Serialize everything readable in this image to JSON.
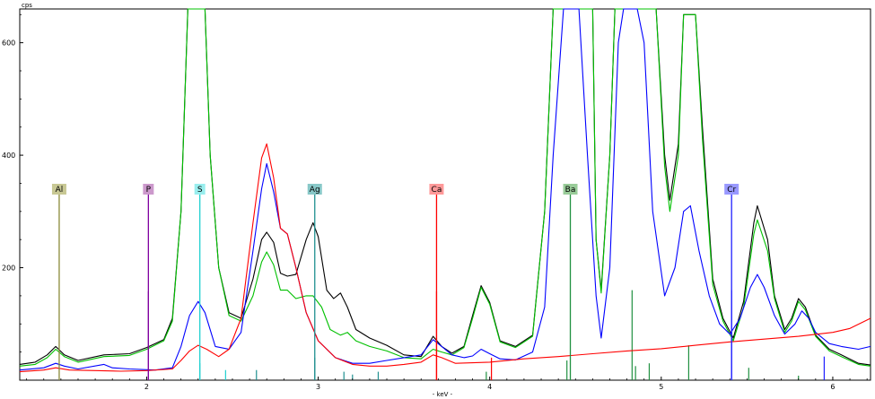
{
  "chart_data": {
    "type": "line",
    "title": "",
    "xlabel": "- keV -",
    "ylabel": "cps",
    "xlim": [
      1.26,
      6.22
    ],
    "ylim": [
      0,
      660
    ],
    "x_ticks": [
      2,
      3,
      4,
      5,
      6
    ],
    "y_ticks": [
      200,
      400,
      600
    ],
    "grid": false,
    "series": [
      {
        "color": "#000000",
        "points": [
          [
            1.26,
            28
          ],
          [
            1.35,
            32
          ],
          [
            1.42,
            45
          ],
          [
            1.47,
            60
          ],
          [
            1.52,
            45
          ],
          [
            1.6,
            35
          ],
          [
            1.75,
            45
          ],
          [
            1.9,
            47
          ],
          [
            2.0,
            58
          ],
          [
            2.1,
            72
          ],
          [
            2.15,
            110
          ],
          [
            2.2,
            300
          ],
          [
            2.24,
            800
          ],
          [
            2.34,
            800
          ],
          [
            2.37,
            400
          ],
          [
            2.42,
            200
          ],
          [
            2.48,
            120
          ],
          [
            2.55,
            110
          ],
          [
            2.62,
            180
          ],
          [
            2.67,
            250
          ],
          [
            2.7,
            263
          ],
          [
            2.74,
            245
          ],
          [
            2.78,
            190
          ],
          [
            2.82,
            185
          ],
          [
            2.87,
            188
          ],
          [
            2.93,
            250
          ],
          [
            2.97,
            280
          ],
          [
            3.0,
            255
          ],
          [
            3.05,
            160
          ],
          [
            3.09,
            145
          ],
          [
            3.13,
            155
          ],
          [
            3.17,
            130
          ],
          [
            3.22,
            90
          ],
          [
            3.3,
            75
          ],
          [
            3.4,
            62
          ],
          [
            3.5,
            45
          ],
          [
            3.6,
            42
          ],
          [
            3.67,
            78
          ],
          [
            3.72,
            60
          ],
          [
            3.78,
            48
          ],
          [
            3.85,
            60
          ],
          [
            3.9,
            115
          ],
          [
            3.95,
            168
          ],
          [
            4.0,
            138
          ],
          [
            4.06,
            70
          ],
          [
            4.15,
            60
          ],
          [
            4.25,
            80
          ],
          [
            4.32,
            300
          ],
          [
            4.37,
            800
          ],
          [
            4.6,
            800
          ],
          [
            4.62,
            250
          ],
          [
            4.65,
            160
          ],
          [
            4.7,
            400
          ],
          [
            4.73,
            800
          ],
          [
            4.97,
            800
          ],
          [
            5.02,
            400
          ],
          [
            5.05,
            320
          ],
          [
            5.1,
            420
          ],
          [
            5.13,
            650
          ],
          [
            5.2,
            650
          ],
          [
            5.24,
            450
          ],
          [
            5.3,
            180
          ],
          [
            5.36,
            110
          ],
          [
            5.42,
            75
          ],
          [
            5.48,
            140
          ],
          [
            5.54,
            280
          ],
          [
            5.56,
            310
          ],
          [
            5.62,
            250
          ],
          [
            5.66,
            150
          ],
          [
            5.72,
            90
          ],
          [
            5.76,
            110
          ],
          [
            5.8,
            145
          ],
          [
            5.84,
            130
          ],
          [
            5.9,
            80
          ],
          [
            5.98,
            55
          ],
          [
            6.05,
            45
          ],
          [
            6.15,
            30
          ],
          [
            6.22,
            27
          ]
        ]
      },
      {
        "color": "#00c000",
        "points": [
          [
            1.26,
            25
          ],
          [
            1.35,
            28
          ],
          [
            1.42,
            40
          ],
          [
            1.47,
            55
          ],
          [
            1.52,
            42
          ],
          [
            1.6,
            32
          ],
          [
            1.75,
            42
          ],
          [
            1.9,
            44
          ],
          [
            2.0,
            55
          ],
          [
            2.1,
            70
          ],
          [
            2.15,
            105
          ],
          [
            2.2,
            300
          ],
          [
            2.24,
            800
          ],
          [
            2.34,
            800
          ],
          [
            2.37,
            400
          ],
          [
            2.42,
            200
          ],
          [
            2.48,
            115
          ],
          [
            2.55,
            105
          ],
          [
            2.62,
            150
          ],
          [
            2.67,
            210
          ],
          [
            2.7,
            228
          ],
          [
            2.74,
            205
          ],
          [
            2.78,
            160
          ],
          [
            2.82,
            160
          ],
          [
            2.87,
            145
          ],
          [
            2.93,
            150
          ],
          [
            2.97,
            150
          ],
          [
            3.02,
            130
          ],
          [
            3.07,
            90
          ],
          [
            3.13,
            80
          ],
          [
            3.17,
            85
          ],
          [
            3.22,
            70
          ],
          [
            3.3,
            60
          ],
          [
            3.4,
            52
          ],
          [
            3.5,
            40
          ],
          [
            3.6,
            38
          ],
          [
            3.67,
            55
          ],
          [
            3.72,
            50
          ],
          [
            3.78,
            45
          ],
          [
            3.85,
            58
          ],
          [
            3.9,
            110
          ],
          [
            3.95,
            165
          ],
          [
            4.0,
            135
          ],
          [
            4.06,
            68
          ],
          [
            4.15,
            58
          ],
          [
            4.25,
            78
          ],
          [
            4.32,
            300
          ],
          [
            4.37,
            800
          ],
          [
            4.6,
            800
          ],
          [
            4.62,
            250
          ],
          [
            4.65,
            155
          ],
          [
            4.7,
            400
          ],
          [
            4.73,
            800
          ],
          [
            4.97,
            800
          ],
          [
            5.02,
            380
          ],
          [
            5.05,
            300
          ],
          [
            5.1,
            400
          ],
          [
            5.13,
            650
          ],
          [
            5.2,
            650
          ],
          [
            5.24,
            430
          ],
          [
            5.3,
            170
          ],
          [
            5.36,
            105
          ],
          [
            5.42,
            70
          ],
          [
            5.48,
            130
          ],
          [
            5.54,
            260
          ],
          [
            5.56,
            285
          ],
          [
            5.62,
            230
          ],
          [
            5.66,
            145
          ],
          [
            5.72,
            85
          ],
          [
            5.76,
            105
          ],
          [
            5.8,
            140
          ],
          [
            5.84,
            125
          ],
          [
            5.9,
            78
          ],
          [
            5.98,
            52
          ],
          [
            6.05,
            42
          ],
          [
            6.15,
            28
          ],
          [
            6.22,
            25
          ]
        ]
      },
      {
        "color": "#0000ff",
        "points": [
          [
            1.26,
            18
          ],
          [
            1.4,
            22
          ],
          [
            1.47,
            30
          ],
          [
            1.52,
            25
          ],
          [
            1.6,
            20
          ],
          [
            1.75,
            28
          ],
          [
            1.8,
            22
          ],
          [
            1.9,
            20
          ],
          [
            2.05,
            18
          ],
          [
            2.15,
            22
          ],
          [
            2.2,
            60
          ],
          [
            2.25,
            115
          ],
          [
            2.3,
            140
          ],
          [
            2.34,
            120
          ],
          [
            2.4,
            60
          ],
          [
            2.48,
            55
          ],
          [
            2.55,
            85
          ],
          [
            2.62,
            230
          ],
          [
            2.67,
            340
          ],
          [
            2.7,
            385
          ],
          [
            2.74,
            335
          ],
          [
            2.78,
            270
          ],
          [
            2.82,
            260
          ],
          [
            2.87,
            200
          ],
          [
            2.93,
            120
          ],
          [
            3.0,
            70
          ],
          [
            3.1,
            40
          ],
          [
            3.2,
            30
          ],
          [
            3.3,
            30
          ],
          [
            3.4,
            35
          ],
          [
            3.5,
            40
          ],
          [
            3.6,
            45
          ],
          [
            3.67,
            72
          ],
          [
            3.72,
            60
          ],
          [
            3.78,
            45
          ],
          [
            3.85,
            40
          ],
          [
            3.9,
            43
          ],
          [
            3.95,
            55
          ],
          [
            4.0,
            47
          ],
          [
            4.06,
            38
          ],
          [
            4.15,
            36
          ],
          [
            4.25,
            50
          ],
          [
            4.32,
            130
          ],
          [
            4.37,
            400
          ],
          [
            4.43,
            700
          ],
          [
            4.47,
            800
          ],
          [
            4.52,
            800
          ],
          [
            4.57,
            400
          ],
          [
            4.62,
            150
          ],
          [
            4.65,
            75
          ],
          [
            4.7,
            200
          ],
          [
            4.75,
            600
          ],
          [
            4.78,
            800
          ],
          [
            4.86,
            800
          ],
          [
            4.9,
            600
          ],
          [
            4.95,
            300
          ],
          [
            5.02,
            150
          ],
          [
            5.08,
            200
          ],
          [
            5.13,
            300
          ],
          [
            5.17,
            310
          ],
          [
            5.22,
            230
          ],
          [
            5.28,
            150
          ],
          [
            5.34,
            100
          ],
          [
            5.4,
            82
          ],
          [
            5.46,
            110
          ],
          [
            5.52,
            165
          ],
          [
            5.56,
            188
          ],
          [
            5.6,
            165
          ],
          [
            5.66,
            115
          ],
          [
            5.72,
            82
          ],
          [
            5.78,
            100
          ],
          [
            5.82,
            123
          ],
          [
            5.86,
            110
          ],
          [
            5.9,
            85
          ],
          [
            5.98,
            65
          ],
          [
            6.05,
            60
          ],
          [
            6.15,
            55
          ],
          [
            6.22,
            60
          ]
        ]
      },
      {
        "color": "#ff0000",
        "points": [
          [
            1.26,
            15
          ],
          [
            1.4,
            18
          ],
          [
            1.47,
            22
          ],
          [
            1.55,
            18
          ],
          [
            1.7,
            17
          ],
          [
            1.85,
            16
          ],
          [
            2.0,
            17
          ],
          [
            2.15,
            20
          ],
          [
            2.2,
            35
          ],
          [
            2.25,
            52
          ],
          [
            2.3,
            62
          ],
          [
            2.35,
            55
          ],
          [
            2.42,
            42
          ],
          [
            2.48,
            55
          ],
          [
            2.55,
            110
          ],
          [
            2.62,
            280
          ],
          [
            2.67,
            395
          ],
          [
            2.7,
            420
          ],
          [
            2.74,
            360
          ],
          [
            2.78,
            270
          ],
          [
            2.82,
            260
          ],
          [
            2.87,
            200
          ],
          [
            2.93,
            120
          ],
          [
            3.0,
            70
          ],
          [
            3.1,
            40
          ],
          [
            3.2,
            28
          ],
          [
            3.3,
            25
          ],
          [
            3.4,
            25
          ],
          [
            3.5,
            28
          ],
          [
            3.6,
            32
          ],
          [
            3.67,
            45
          ],
          [
            3.72,
            40
          ],
          [
            3.8,
            30
          ],
          [
            4.0,
            32
          ],
          [
            4.2,
            38
          ],
          [
            4.4,
            42
          ],
          [
            4.6,
            47
          ],
          [
            4.8,
            52
          ],
          [
            5.0,
            56
          ],
          [
            5.2,
            62
          ],
          [
            5.4,
            68
          ],
          [
            5.6,
            73
          ],
          [
            5.8,
            78
          ],
          [
            6.0,
            85
          ],
          [
            6.1,
            92
          ],
          [
            6.22,
            110
          ]
        ]
      }
    ],
    "element_markers": [
      {
        "label": "Al",
        "energy": 1.49,
        "color": "#8a8a3a",
        "box_color": "#c8c894"
      },
      {
        "label": "P",
        "energy": 2.01,
        "color": "#8000a0",
        "box_color": "#cc99cc"
      },
      {
        "label": "S",
        "energy": 2.31,
        "color": "#20d0d0",
        "box_color": "#99eeee"
      },
      {
        "label": "Ag",
        "energy": 2.98,
        "color": "#209090",
        "box_color": "#88c8c8"
      },
      {
        "label": "Ca",
        "energy": 3.69,
        "color": "#ff0000",
        "box_color": "#ff9999"
      },
      {
        "label": "Ba",
        "energy": 4.47,
        "color": "#209040",
        "box_color": "#99cc99"
      },
      {
        "label": "Cr",
        "energy": 5.41,
        "color": "#2020ff",
        "box_color": "#9999ff"
      }
    ],
    "stick_lines": [
      {
        "energy": 2.01,
        "height": 158,
        "color": "#8000a0"
      },
      {
        "energy": 2.31,
        "height": 30,
        "color": "#20d0d0"
      },
      {
        "energy": 2.46,
        "height": 18,
        "color": "#20d0d0"
      },
      {
        "energy": 2.64,
        "height": 18,
        "color": "#209090"
      },
      {
        "energy": 2.98,
        "height": 40,
        "color": "#209090"
      },
      {
        "energy": 3.15,
        "height": 15,
        "color": "#209090"
      },
      {
        "energy": 3.2,
        "height": 10,
        "color": "#209090"
      },
      {
        "energy": 3.35,
        "height": 15,
        "color": "#209090"
      },
      {
        "energy": 3.69,
        "height": 158,
        "color": "#ff0000"
      },
      {
        "energy": 4.01,
        "height": 40,
        "color": "#ff0000"
      },
      {
        "energy": 3.98,
        "height": 15,
        "color": "#209040"
      },
      {
        "energy": 4.45,
        "height": 35,
        "color": "#209040"
      },
      {
        "energy": 4.83,
        "height": 160,
        "color": "#209040"
      },
      {
        "energy": 4.85,
        "height": 25,
        "color": "#209040"
      },
      {
        "energy": 4.93,
        "height": 30,
        "color": "#209040"
      },
      {
        "energy": 5.16,
        "height": 62,
        "color": "#209040"
      },
      {
        "energy": 5.41,
        "height": 160,
        "color": "#2020ff"
      },
      {
        "energy": 5.51,
        "height": 22,
        "color": "#209040"
      },
      {
        "energy": 5.8,
        "height": 8,
        "color": "#209040"
      },
      {
        "energy": 5.95,
        "height": 42,
        "color": "#2020ff"
      }
    ]
  }
}
